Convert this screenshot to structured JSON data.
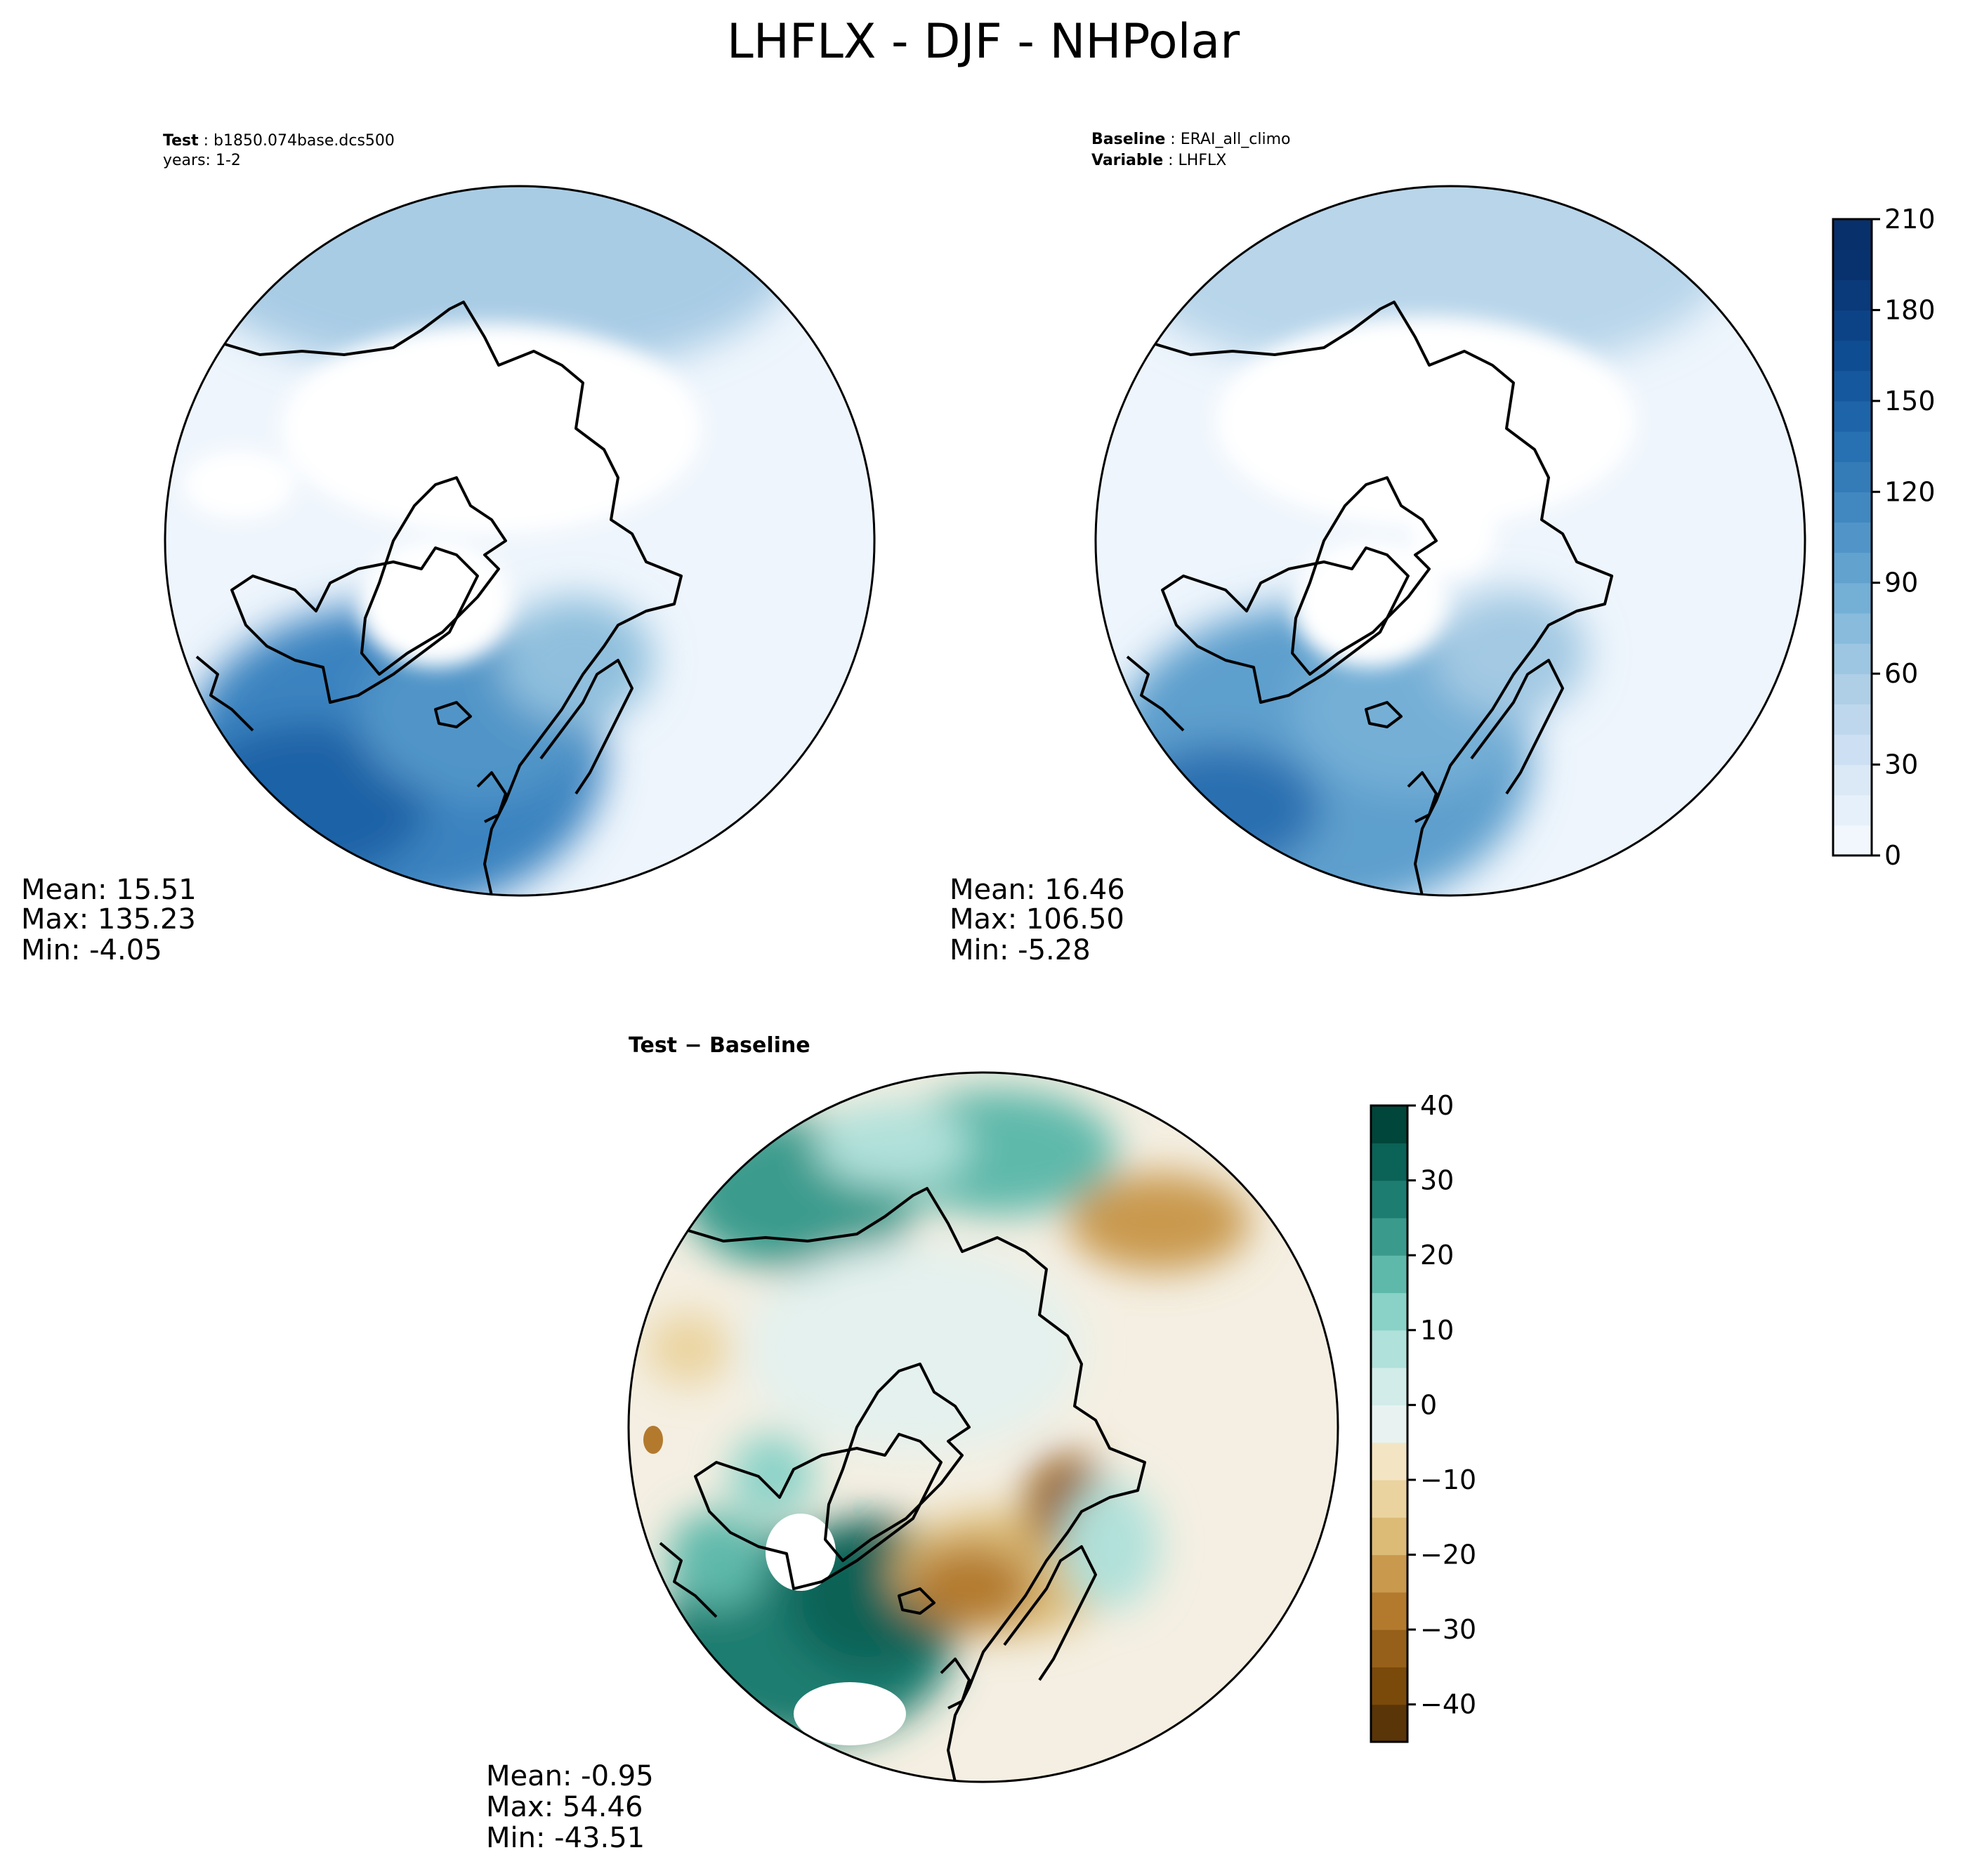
{
  "figure": {
    "title": "LHFLX - DJF - NHPolar"
  },
  "panels": {
    "test": {
      "header_label": "Test",
      "header_value": "b1850.074base.dcs500",
      "years_line": "years: 1-2",
      "stats": {
        "mean": "Mean: 15.51",
        "max": "Max: 135.23",
        "min": "Min: -4.05"
      }
    },
    "baseline": {
      "header_label": "Baseline",
      "header_value": "ERAI_all_climo",
      "variable_label": "Variable",
      "variable_value": "LHFLX",
      "stats": {
        "mean": "Mean: 16.46",
        "max": "Max: 106.50",
        "min": "Min: -5.28"
      }
    },
    "diff": {
      "title": "Test − Baseline",
      "stats": {
        "mean": "Mean: -0.95",
        "max": "Max: 54.46",
        "min": "Min: -43.51"
      }
    }
  },
  "chart_data": [
    {
      "type": "heatmap",
      "projection": "north-polar-stereographic",
      "panel": "Test",
      "mean": 15.51,
      "max": 135.23,
      "min": -4.05,
      "colorbar": {
        "colormap": "Blues",
        "vmin": 0,
        "vmax": 210,
        "ticks": [
          0,
          30,
          60,
          90,
          120,
          150,
          180,
          210
        ],
        "tick_labels": [
          "0",
          "30",
          "60",
          "90",
          "120",
          "150",
          "180",
          "210"
        ],
        "level_step": 10,
        "colors": [
          "#f2f7fd",
          "#e6f0fa",
          "#dbe9f6",
          "#cddff2",
          "#bed7ec",
          "#aecfe6",
          "#9cc6e1",
          "#88bbdc",
          "#74afd6",
          "#62a2cf",
          "#5195c8",
          "#4188c0",
          "#337cb8",
          "#2770b1",
          "#1e64a8",
          "#16589e",
          "#0f4d93",
          "#0c4387",
          "#0a3a7a",
          "#08326e",
          "#08306b"
        ]
      }
    },
    {
      "type": "heatmap",
      "projection": "north-polar-stereographic",
      "panel": "Baseline",
      "mean": 16.46,
      "max": 106.5,
      "min": -5.28,
      "colorbar": {
        "colormap": "Blues",
        "vmin": 0,
        "vmax": 210,
        "ticks": [
          0,
          30,
          60,
          90,
          120,
          150,
          180,
          210
        ],
        "tick_labels": [
          "0",
          "30",
          "60",
          "90",
          "120",
          "150",
          "180",
          "210"
        ]
      }
    },
    {
      "type": "heatmap",
      "projection": "north-polar-stereographic",
      "panel": "Test − Baseline",
      "mean": -0.95,
      "max": 54.46,
      "min": -43.51,
      "colorbar": {
        "colormap": "BrBG",
        "vmin": -45,
        "vmax": 40,
        "ticks": [
          -40,
          -30,
          -20,
          -10,
          0,
          10,
          20,
          30,
          40
        ],
        "tick_labels": [
          "−40",
          "−30",
          "−20",
          "−10",
          "0",
          "10",
          "20",
          "30",
          "40"
        ],
        "level_step": 5,
        "colors": [
          "#5a3508",
          "#7a4a0b",
          "#96601a",
          "#b37a2e",
          "#c9994e",
          "#dcbb77",
          "#ead39e",
          "#f3e5c4",
          "#f4efe2",
          "#e8f3f1",
          "#d2ece9",
          "#b0e1da",
          "#8ad2c7",
          "#5fb9ab",
          "#3a9b8d",
          "#1d7d70",
          "#0b6257",
          "#01463a"
        ]
      }
    }
  ]
}
